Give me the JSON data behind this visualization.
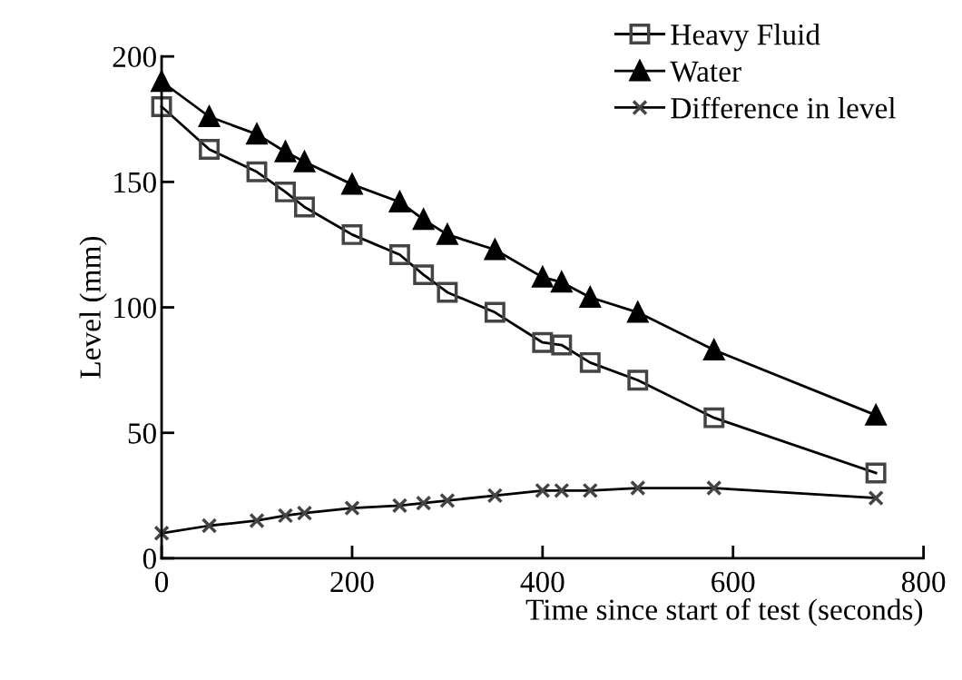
{
  "chart_data": {
    "type": "line",
    "xlabel": "Time since start of test (seconds)",
    "ylabel": "Level (mm)",
    "x": [
      0,
      50,
      100,
      130,
      150,
      200,
      250,
      275,
      300,
      350,
      400,
      420,
      450,
      500,
      580,
      750
    ],
    "series": [
      {
        "name": "Heavy Fluid",
        "color": "#000000",
        "marker": "square",
        "values": [
          180,
          163,
          154,
          146,
          140,
          129,
          121,
          113,
          106,
          98,
          86,
          85,
          78,
          71,
          56,
          34
        ]
      },
      {
        "name": "Water",
        "color": "#000000",
        "marker": "triangle",
        "values": [
          190,
          176,
          169,
          162,
          158,
          149,
          142,
          135,
          129,
          123,
          112,
          110,
          104,
          98,
          83,
          57
        ]
      },
      {
        "name": "Difference in level",
        "color": "#000000",
        "marker": "cross",
        "values": [
          10,
          13,
          15,
          17,
          18,
          20,
          21,
          22,
          23,
          25,
          27,
          27,
          27,
          28,
          28,
          24
        ]
      }
    ],
    "xlim": [
      0,
      800
    ],
    "xticks": [
      0,
      200,
      400,
      600,
      800
    ],
    "ylim": [
      0,
      200
    ],
    "yticks": [
      0,
      50,
      100,
      150,
      200
    ],
    "grid": false,
    "legend": "top right",
    "line_style": "solid"
  }
}
